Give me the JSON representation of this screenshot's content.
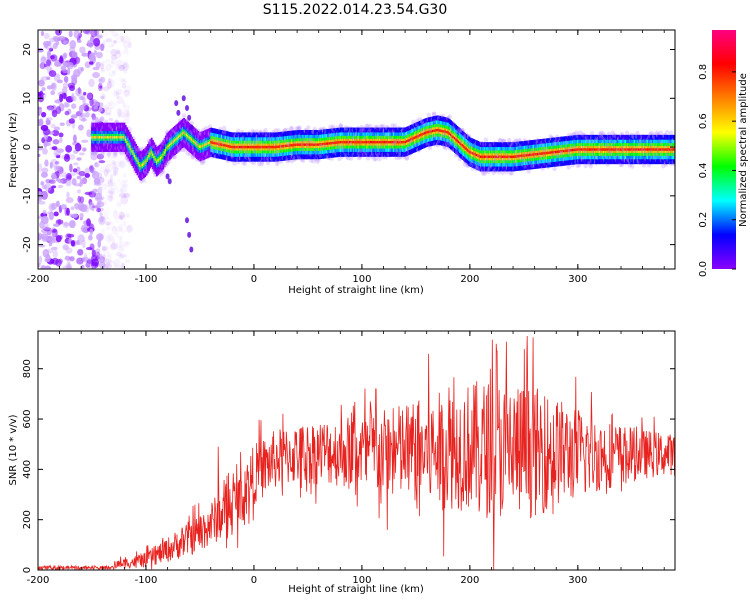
{
  "title": "S115.2022.014.23.54.G30",
  "chart_data": [
    {
      "type": "heatmap",
      "xlabel": "Height of straight line (km)",
      "ylabel": "Frequency (Hz)",
      "xlim": [
        -200,
        390
      ],
      "ylim": [
        -25,
        24
      ],
      "xticks": [
        -200,
        -100,
        0,
        100,
        200,
        300
      ],
      "yticks": [
        -20,
        -10,
        0,
        10,
        20
      ],
      "colorbar": {
        "label": "Normalized spectral amplitude",
        "range": [
          0,
          0.97
        ],
        "ticks": [
          "0.0",
          "0.2",
          "0.4",
          "0.6",
          "0.8"
        ],
        "colors": [
          "#ffffff",
          "#8a00ff",
          "#0000ff",
          "#00ffff",
          "#00ff00",
          "#ffff00",
          "#ff8000",
          "#ff0000",
          "#ff0080"
        ]
      },
      "ridge": {
        "x": [
          -150,
          -140,
          -130,
          -120,
          -115,
          -110,
          -105,
          -100,
          -95,
          -90,
          -85,
          -80,
          -75,
          -70,
          -65,
          -60,
          -55,
          -50,
          -40,
          -20,
          0,
          20,
          40,
          60,
          80,
          100,
          120,
          140,
          150,
          160,
          170,
          180,
          190,
          200,
          210,
          220,
          240,
          260,
          280,
          300,
          320,
          340,
          360,
          390
        ],
        "y": [
          2,
          2,
          2,
          2,
          0,
          -2,
          -4,
          -3,
          -1,
          -3,
          -2,
          0,
          1,
          2,
          3,
          2,
          1,
          0,
          1,
          0,
          0,
          0,
          0.5,
          0.5,
          1,
          1,
          1,
          1,
          2,
          3,
          3.5,
          3,
          1,
          -1,
          -2,
          -2,
          -2,
          -1.5,
          -1,
          -0.5,
          -0.5,
          -0.5,
          -0.5,
          -0.5
        ]
      },
      "noise_region_x": [
        -200,
        -140
      ]
    },
    {
      "type": "line",
      "xlabel": "Height of straight line (km)",
      "ylabel": "SNR (10 * v/v)",
      "xlim": [
        -200,
        390
      ],
      "ylim": [
        0,
        950
      ],
      "xticks": [
        -200,
        -100,
        0,
        100,
        200,
        300
      ],
      "yticks": [
        0,
        200,
        400,
        600,
        800
      ],
      "color": "#e8231f",
      "envelope": {
        "x": [
          -200,
          -150,
          -130,
          -100,
          -80,
          -50,
          -30,
          -10,
          0,
          20,
          40,
          60,
          80,
          100,
          120,
          140,
          160,
          180,
          200,
          220,
          240,
          260,
          280,
          300,
          320,
          340,
          360,
          390
        ],
        "mean": [
          5,
          5,
          20,
          40,
          80,
          150,
          220,
          300,
          380,
          440,
          460,
          470,
          470,
          470,
          460,
          470,
          470,
          480,
          490,
          480,
          480,
          470,
          470,
          460,
          460,
          460,
          460,
          460
        ],
        "spread": [
          5,
          5,
          15,
          30,
          50,
          80,
          100,
          110,
          120,
          120,
          120,
          130,
          140,
          160,
          180,
          200,
          220,
          240,
          260,
          280,
          280,
          260,
          220,
          180,
          150,
          120,
          100,
          80
        ]
      },
      "peaks": [
        {
          "x": 253,
          "y": 930
        },
        {
          "x": 225,
          "y": 870
        },
        {
          "x": 113,
          "y": 720
        },
        {
          "x": -33,
          "y": 490
        }
      ]
    }
  ]
}
